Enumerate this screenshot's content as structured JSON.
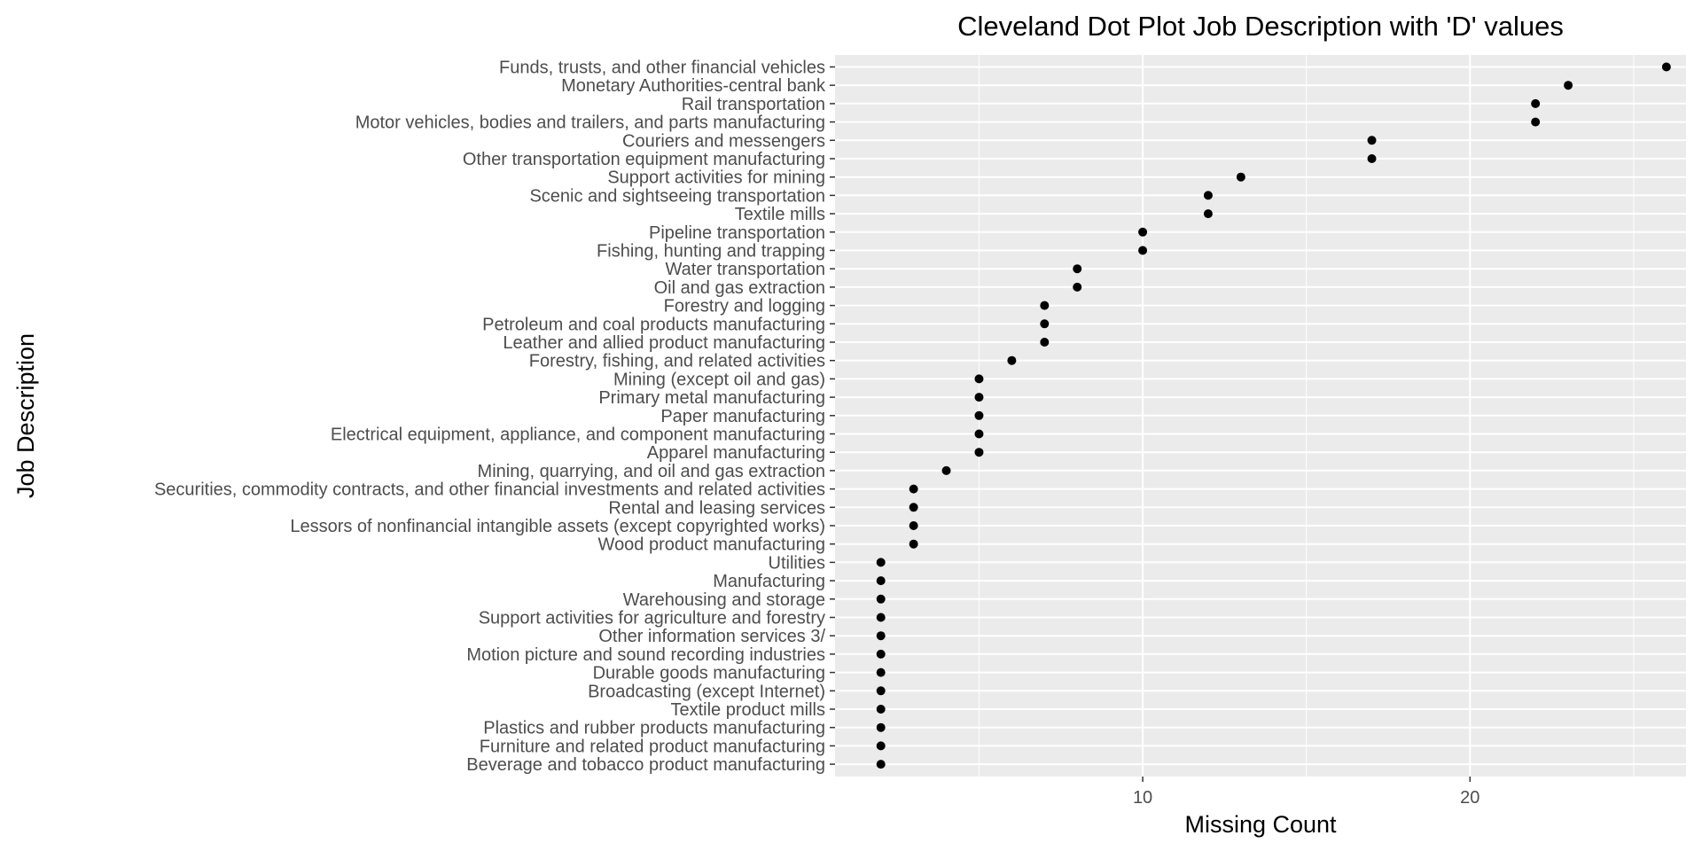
{
  "chart_data": {
    "type": "scatter",
    "title": "Cleveland Dot Plot Job Description with 'D' values",
    "xlabel": "Missing Count",
    "ylabel": "Job Description",
    "xlim": [
      0.6,
      26.6
    ],
    "x_ticks": [
      10,
      20
    ],
    "x_minor_ticks": [
      5,
      15,
      25
    ],
    "grid": true,
    "legend": "none",
    "colors": {
      "panel": "#ebebeb",
      "grid": "#ffffff",
      "point": "#000000",
      "tick_text": "#4d4d4d"
    },
    "categories": [
      "Funds, trusts, and other financial vehicles",
      "Monetary Authorities-central bank",
      "Rail transportation",
      "Motor vehicles, bodies and trailers, and parts manufacturing",
      "Couriers and messengers",
      "Other transportation equipment manufacturing",
      "Support activities for mining",
      "Scenic and sightseeing transportation",
      "Textile mills",
      "Pipeline transportation",
      "Fishing, hunting and trapping",
      "Water transportation",
      "Oil and gas extraction",
      "Forestry and logging",
      "Petroleum and coal products manufacturing",
      "Leather and allied product manufacturing",
      "Forestry, fishing, and related activities",
      "Mining (except oil and gas)",
      "Primary metal manufacturing",
      "Paper manufacturing",
      "Electrical equipment, appliance, and component manufacturing",
      "Apparel manufacturing",
      "Mining, quarrying, and oil and gas extraction",
      "Securities, commodity contracts, and other financial investments and related activities",
      "Rental and leasing services",
      "Lessors of nonfinancial intangible assets (except copyrighted works)",
      "Wood product manufacturing",
      "Utilities",
      "Manufacturing",
      "Warehousing and storage",
      "Support activities for agriculture and forestry",
      "Other information services 3/",
      "Motion picture and sound recording industries",
      "Durable goods manufacturing",
      "Broadcasting (except Internet)",
      "Textile product mills",
      "Plastics and rubber products manufacturing",
      "Furniture and related product manufacturing",
      "Beverage and tobacco product manufacturing"
    ],
    "values": [
      26,
      23,
      22,
      22,
      17,
      17,
      13,
      12,
      12,
      10,
      10,
      8,
      8,
      7,
      7,
      7,
      6,
      5,
      5,
      5,
      5,
      5,
      4,
      3,
      3,
      3,
      3,
      2,
      2,
      2,
      2,
      2,
      2,
      2,
      2,
      2,
      2,
      2,
      2
    ]
  }
}
